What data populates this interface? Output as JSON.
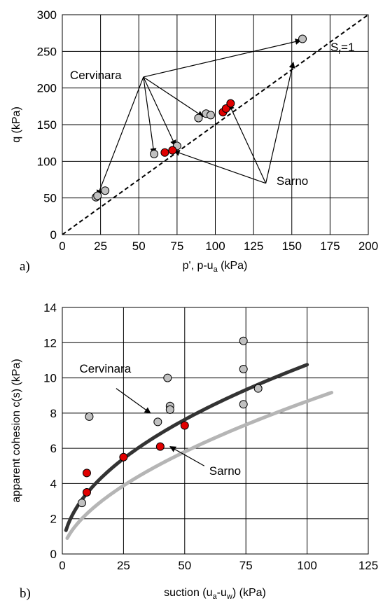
{
  "chart_data": [
    {
      "type": "scatter",
      "panel_label": "a)",
      "xlabel_main": "p', p-u",
      "xlabel_sub": "a",
      "xlabel_tail": " (kPa)",
      "ylabel": "q (kPa)",
      "xlim": [
        0,
        200
      ],
      "ylim": [
        0,
        300
      ],
      "x_ticks": [
        0,
        25,
        50,
        75,
        100,
        125,
        150,
        175,
        200
      ],
      "y_ticks": [
        0,
        50,
        100,
        150,
        200,
        250,
        300
      ],
      "grid": true,
      "series": [
        {
          "name": "Cervinara",
          "color": "#c0c0c0",
          "points": [
            [
              22,
              51
            ],
            [
              23,
              53
            ],
            [
              28,
              60
            ],
            [
              60,
              110
            ],
            [
              75,
              121
            ],
            [
              89,
              159
            ],
            [
              94,
              165
            ],
            [
              97,
              163
            ],
            [
              157,
              267
            ]
          ]
        },
        {
          "name": "Sarno",
          "color": "#e00000",
          "points": [
            [
              67,
              112
            ],
            [
              72,
              115
            ],
            [
              105,
              167
            ],
            [
              107,
              172
            ],
            [
              110,
              179
            ]
          ]
        }
      ],
      "reference_line": {
        "label_main": "S",
        "label_sub": "r",
        "label_tail": "=1",
        "from": [
          0,
          0
        ],
        "to": [
          200,
          300
        ],
        "style": "dashed"
      },
      "annotations": [
        {
          "text": "Cervinara",
          "anchor": [
            53,
            215
          ],
          "text_pos": [
            5,
            212
          ],
          "arrow_targets": [
            [
              23,
              53
            ],
            [
              60,
              110
            ],
            [
              74,
              121
            ],
            [
              92,
              161
            ],
            [
              156,
              265
            ]
          ]
        },
        {
          "text": "Sarno",
          "anchor": [
            133,
            70
          ],
          "text_pos": [
            140,
            68
          ],
          "arrow_targets": [
            [
              73,
              114
            ],
            [
              109,
              178
            ],
            [
              151,
              235
            ]
          ]
        }
      ]
    },
    {
      "type": "scatter",
      "panel_label": "b)",
      "xlabel_main": "suction (u",
      "xlabel_sub1": "a",
      "xlabel_mid": "-u",
      "xlabel_sub2": "w",
      "xlabel_tail": ") (kPa)",
      "ylabel": "apparent cohesion c(s) (kPa)",
      "xlim": [
        0,
        125
      ],
      "ylim": [
        0,
        14
      ],
      "x_ticks": [
        0,
        25,
        50,
        75,
        100,
        125
      ],
      "y_ticks": [
        0,
        2,
        4,
        6,
        8,
        10,
        12,
        14
      ],
      "grid": true,
      "series": [
        {
          "name": "Cervinara",
          "color": "#c0c0c0",
          "points": [
            [
              8,
              2.9
            ],
            [
              11,
              7.8
            ],
            [
              39,
              7.5
            ],
            [
              43,
              10.0
            ],
            [
              44,
              8.4
            ],
            [
              44,
              8.2
            ],
            [
              74,
              12.1
            ],
            [
              74,
              10.5
            ],
            [
              74,
              8.5
            ],
            [
              80,
              9.4
            ]
          ]
        },
        {
          "name": "Sarno",
          "color": "#e00000",
          "points": [
            [
              10,
              3.5
            ],
            [
              10,
              4.6
            ],
            [
              25,
              5.5
            ],
            [
              40,
              6.1
            ],
            [
              50,
              7.3
            ]
          ]
        }
      ],
      "curves": [
        {
          "name": "Cervinara",
          "color": "#333333",
          "x_range": [
            1.5,
            100
          ],
          "a": 1.1,
          "b": 0.495
        },
        {
          "name": "Sarno",
          "color": "#b5b5b5",
          "x_range": [
            2,
            110
          ],
          "a": 0.6,
          "b": 0.58
        }
      ],
      "annotations": [
        {
          "text": "Cervinara",
          "text_pos": [
            7,
            10.3
          ],
          "from": [
            22,
            9.4
          ],
          "to": [
            36,
            8.0
          ]
        },
        {
          "text": "Sarno",
          "text_pos": [
            60,
            4.5
          ],
          "from": [
            58,
            5.0
          ],
          "to": [
            44,
            6.1
          ]
        }
      ]
    }
  ]
}
